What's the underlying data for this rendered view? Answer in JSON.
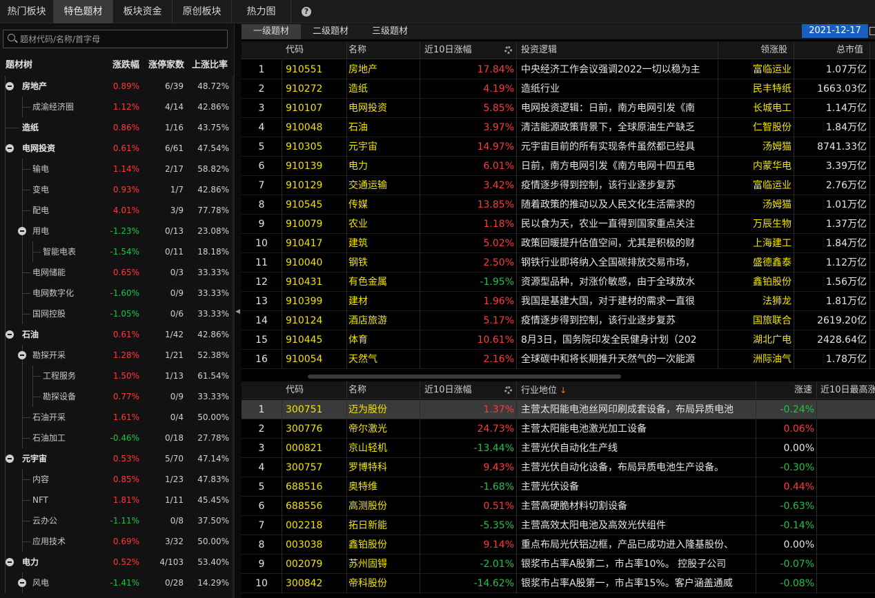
{
  "top_tabs": [
    "热门板块",
    "特色题材",
    "板块资金",
    "原创板块",
    "热力图"
  ],
  "help_icon": "question-circle-icon",
  "search": {
    "placeholder": "题材代码/名称/首字母"
  },
  "tree_header": {
    "name": "题材树",
    "change": "涨跌幅",
    "limit": "涨停家数",
    "ratio": "上涨比率"
  },
  "tree": [
    {
      "name": "房地产",
      "change": "0.89%",
      "limit": "6/39",
      "ratio": "48.72%",
      "level": 0,
      "expanded": true
    },
    {
      "name": "成渝经济圈",
      "change": "1.12%",
      "limit": "4/14",
      "ratio": "42.86%",
      "level": 1
    },
    {
      "name": "造纸",
      "change": "0.86%",
      "limit": "1/16",
      "ratio": "43.75%",
      "level": 0
    },
    {
      "name": "电网投资",
      "change": "0.61%",
      "limit": "6/61",
      "ratio": "47.54%",
      "level": 0,
      "expanded": true
    },
    {
      "name": "输电",
      "change": "1.14%",
      "limit": "2/17",
      "ratio": "58.82%",
      "level": 1
    },
    {
      "name": "变电",
      "change": "0.93%",
      "limit": "1/7",
      "ratio": "42.86%",
      "level": 1
    },
    {
      "name": "配电",
      "change": "4.01%",
      "limit": "3/9",
      "ratio": "77.78%",
      "level": 1
    },
    {
      "name": "用电",
      "change": "-1.23%",
      "limit": "0/13",
      "ratio": "23.08%",
      "level": 1,
      "expanded": true
    },
    {
      "name": "智能电表",
      "change": "-1.54%",
      "limit": "0/11",
      "ratio": "18.18%",
      "level": 2
    },
    {
      "name": "电网储能",
      "change": "0.65%",
      "limit": "0/3",
      "ratio": "33.33%",
      "level": 1
    },
    {
      "name": "电网数字化",
      "change": "-1.60%",
      "limit": "0/9",
      "ratio": "33.33%",
      "level": 1
    },
    {
      "name": "国网控股",
      "change": "-1.05%",
      "limit": "0/6",
      "ratio": "33.33%",
      "level": 1
    },
    {
      "name": "石油",
      "change": "0.61%",
      "limit": "1/42",
      "ratio": "42.86%",
      "level": 0,
      "expanded": true
    },
    {
      "name": "勘探开采",
      "change": "1.28%",
      "limit": "1/21",
      "ratio": "52.38%",
      "level": 1,
      "expanded": true
    },
    {
      "name": "工程服务",
      "change": "1.50%",
      "limit": "1/13",
      "ratio": "61.54%",
      "level": 2
    },
    {
      "name": "勘探设备",
      "change": "0.77%",
      "limit": "0/9",
      "ratio": "33.33%",
      "level": 2
    },
    {
      "name": "石油开采",
      "change": "1.61%",
      "limit": "0/4",
      "ratio": "50.00%",
      "level": 1
    },
    {
      "name": "石油加工",
      "change": "-0.46%",
      "limit": "0/18",
      "ratio": "27.78%",
      "level": 1
    },
    {
      "name": "元宇宙",
      "change": "0.53%",
      "limit": "5/70",
      "ratio": "47.14%",
      "level": 0,
      "expanded": true
    },
    {
      "name": "内容",
      "change": "0.85%",
      "limit": "1/23",
      "ratio": "47.83%",
      "level": 1
    },
    {
      "name": "NFT",
      "change": "1.81%",
      "limit": "1/11",
      "ratio": "45.45%",
      "level": 1
    },
    {
      "name": "云办公",
      "change": "-1.11%",
      "limit": "0/8",
      "ratio": "37.50%",
      "level": 1
    },
    {
      "name": "应用技术",
      "change": "0.69%",
      "limit": "3/32",
      "ratio": "50.00%",
      "level": 1
    },
    {
      "name": "电力",
      "change": "0.52%",
      "limit": "4/103",
      "ratio": "53.40%",
      "level": 0,
      "expanded": true
    },
    {
      "name": "风电",
      "change": "-1.41%",
      "limit": "0/28",
      "ratio": "14.29%",
      "level": 1,
      "expanded": true
    }
  ],
  "sub_tabs": [
    "一级题材",
    "二级题材",
    "三级题材"
  ],
  "date": "2021-12-17",
  "upper_header": {
    "code": "代码",
    "name": "名称",
    "chg10": "近10日涨幅",
    "logic": "投资逻辑",
    "leader": "领涨股",
    "mktcap": "总市值"
  },
  "upper_rows": [
    {
      "idx": "1",
      "code": "910551",
      "name": "房地产",
      "chg": "17.84%",
      "logic": "中央经济工作会议强调2022一切以稳为主",
      "leader": "富临运业",
      "cap": "1.07万亿"
    },
    {
      "idx": "2",
      "code": "910272",
      "name": "造纸",
      "chg": "4.19%",
      "logic": "造纸行业",
      "leader": "民丰特纸",
      "cap": "1663.03亿"
    },
    {
      "idx": "3",
      "code": "910107",
      "name": "电网投资",
      "chg": "5.85%",
      "logic": "电网投资逻辑：日前，南方电网引发《南",
      "leader": "长城电工",
      "cap": "1.14万亿"
    },
    {
      "idx": "4",
      "code": "910048",
      "name": "石油",
      "chg": "3.97%",
      "logic": "清洁能源政策背景下，全球原油生产缺乏",
      "leader": "仁智股份",
      "cap": "1.84万亿"
    },
    {
      "idx": "5",
      "code": "910305",
      "name": "元宇宙",
      "chg": "14.97%",
      "logic": "元宇宙目前的所有实现条件虽然都已经具",
      "leader": "汤姆猫",
      "cap": "8741.33亿"
    },
    {
      "idx": "6",
      "code": "910139",
      "name": "电力",
      "chg": "6.01%",
      "logic": "日前，南方电网引发《南方电网十四五电",
      "leader": "内蒙华电",
      "cap": "3.39万亿"
    },
    {
      "idx": "7",
      "code": "910129",
      "name": "交通运输",
      "chg": "3.42%",
      "logic": "疫情逐步得到控制，该行业逐步复苏",
      "leader": "富临运业",
      "cap": "2.76万亿"
    },
    {
      "idx": "8",
      "code": "910545",
      "name": "传媒",
      "chg": "13.85%",
      "logic": "随着政策的推动以及人民文化生活需求的",
      "leader": "汤姆猫",
      "cap": "1.01万亿"
    },
    {
      "idx": "9",
      "code": "910079",
      "name": "农业",
      "chg": "1.18%",
      "logic": "民以食为天，农业一直得到国家重点关注",
      "leader": "万辰生物",
      "cap": "1.37万亿"
    },
    {
      "idx": "10",
      "code": "910417",
      "name": "建筑",
      "chg": "5.02%",
      "logic": "政策回暖提升估值空间，尤其是积极的财",
      "leader": "上海建工",
      "cap": "1.84万亿"
    },
    {
      "idx": "11",
      "code": "910040",
      "name": "钢铁",
      "chg": "2.50%",
      "logic": "钢铁行业即将纳入全国碳排放交易市场，",
      "leader": "盛德鑫泰",
      "cap": "1.12万亿"
    },
    {
      "idx": "12",
      "code": "910431",
      "name": "有色金属",
      "chg": "-1.95%",
      "logic": "资源型品种，对涨价敏感，由于全球放水",
      "leader": "鑫铂股份",
      "cap": "1.56万亿"
    },
    {
      "idx": "13",
      "code": "910399",
      "name": "建材",
      "chg": "1.96%",
      "logic": "我国是基建大国，对于建材的需求一直很",
      "leader": "法狮龙",
      "cap": "1.81万亿"
    },
    {
      "idx": "14",
      "code": "910124",
      "name": "酒店旅游",
      "chg": "5.17%",
      "logic": "疫情逐步得到控制，该行业逐步复苏",
      "leader": "国旅联合",
      "cap": "2619.20亿"
    },
    {
      "idx": "15",
      "code": "910445",
      "name": "体育",
      "chg": "10.61%",
      "logic": "8月3日，国务院印发全民健身计划（202",
      "leader": "湖北广电",
      "cap": "2428.64亿"
    },
    {
      "idx": "16",
      "code": "910054",
      "name": "天然气",
      "chg": "2.16%",
      "logic": "全球碳中和将长期推升天然气的一次能源",
      "leader": "洲际油气",
      "cap": "1.78万亿"
    }
  ],
  "lower_header": {
    "code": "代码",
    "name": "名称",
    "chg10": "近10日涨幅",
    "position": "行业地位",
    "speed": "涨速",
    "high10": "近10日最高涨"
  },
  "lower_rows": [
    {
      "idx": "1",
      "code": "300751",
      "name": "迈为股份",
      "chg": "1.37%",
      "pos": "主营太阳能电池丝网印刷成套设备，布局异质电池",
      "speed": "-0.24%"
    },
    {
      "idx": "2",
      "code": "300776",
      "name": "帝尔激光",
      "chg": "24.73%",
      "pos": "主营太阳能电池激光加工设备",
      "speed": "0.06%"
    },
    {
      "idx": "3",
      "code": "000821",
      "name": "京山轻机",
      "chg": "-13.44%",
      "pos": "主营光伏自动化生产线",
      "speed": "0.00%"
    },
    {
      "idx": "4",
      "code": "300757",
      "name": "罗博特科",
      "chg": "9.43%",
      "pos": "主营光伏自动化设备，布局异质电池生产设备。",
      "speed": "-0.30%"
    },
    {
      "idx": "5",
      "code": "688516",
      "name": "奥特维",
      "chg": "-1.68%",
      "pos": "主营光伏设备",
      "speed": "0.44%"
    },
    {
      "idx": "6",
      "code": "688556",
      "name": "高测股份",
      "chg": "0.51%",
      "pos": "主营高硬脆材料切割设备",
      "speed": "-0.63%"
    },
    {
      "idx": "7",
      "code": "002218",
      "name": "拓日新能",
      "chg": "-5.35%",
      "pos": "主营高效太阳电池及高效光伏组件",
      "speed": "-0.14%"
    },
    {
      "idx": "8",
      "code": "003038",
      "name": "鑫铂股份",
      "chg": "9.14%",
      "pos": "重点布局光伏铝边框，产品已成功进入隆基股份、",
      "speed": "0.00%"
    },
    {
      "idx": "9",
      "code": "002079",
      "name": "苏州固锝",
      "chg": "-2.01%",
      "pos": "银浆市占率A股第二，市占率10%。 控股子公司",
      "speed": "-0.07%"
    },
    {
      "idx": "10",
      "code": "300842",
      "name": "帝科股份",
      "chg": "-14.62%",
      "pos": "银浆市占率A股第一，市占率15%。客户涵盖通威",
      "speed": "-0.08%"
    }
  ]
}
